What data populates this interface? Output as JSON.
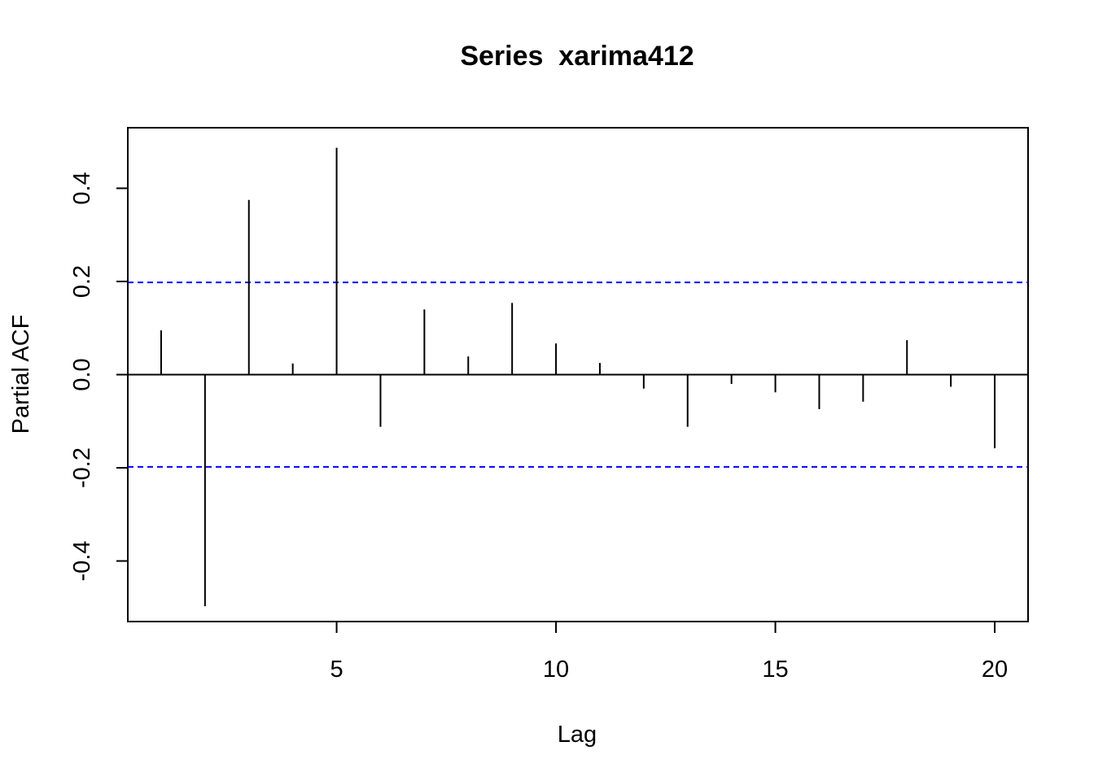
{
  "chart_data": {
    "type": "bar",
    "title": "Series  xarima412",
    "xlabel": "Lag",
    "ylabel": "Partial ACF",
    "x": [
      1,
      2,
      3,
      4,
      5,
      6,
      7,
      8,
      9,
      10,
      11,
      12,
      13,
      14,
      15,
      16,
      17,
      18,
      19,
      20
    ],
    "values": [
      0.095,
      -0.497,
      0.375,
      0.024,
      0.487,
      -0.112,
      0.14,
      0.039,
      0.154,
      0.067,
      0.025,
      -0.03,
      -0.112,
      -0.02,
      -0.038,
      -0.074,
      -0.058,
      0.074,
      -0.026,
      -0.158
    ],
    "xlim": [
      0.24,
      20.76
    ],
    "ylim": [
      -0.53,
      0.53
    ],
    "x_ticks": [
      5,
      10,
      15,
      20
    ],
    "y_ticks": [
      -0.4,
      -0.2,
      0.0,
      0.2,
      0.4
    ],
    "x_tick_labels": [
      "5",
      "10",
      "15",
      "20"
    ],
    "y_tick_labels": [
      "-0.4",
      "-0.2",
      "0.0",
      "0.2",
      "0.4"
    ],
    "confidence_bound": 0.198,
    "colors": {
      "bars": "#000000",
      "zero_line": "#000000",
      "ci_lines": "#0000ff"
    },
    "grid": false,
    "legend": "none"
  }
}
